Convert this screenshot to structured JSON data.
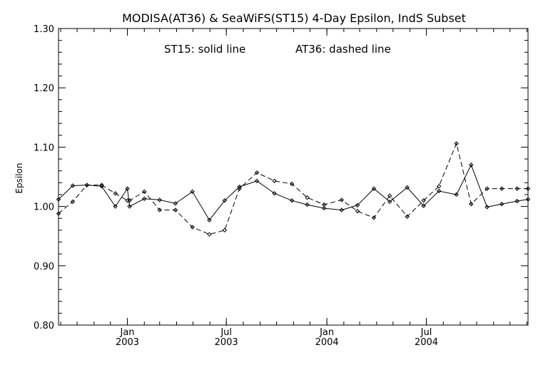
{
  "chart_data": {
    "type": "line",
    "title": "MODISA(AT36) & SeaWiFS(ST15) 4-Day Epsilon, IndS Subset",
    "annotation": {
      "solid": "ST15: solid line",
      "dashed": "AT36: dashed line"
    },
    "ylabel": "Epsilon",
    "xlabel": "",
    "ylim": [
      0.8,
      1.3
    ],
    "xlim": [
      "2002-08-28",
      "2005-01-03"
    ],
    "yticks": [
      "0.80",
      "0.90",
      "1.00",
      "1.10",
      "1.20",
      "1.30"
    ],
    "yticks_values": [
      0.8,
      0.9,
      1.0,
      1.1,
      1.2,
      1.3
    ],
    "xticks": [
      {
        "date": "2003-01-01",
        "month": "Jan",
        "year": "2003"
      },
      {
        "date": "2003-07-01",
        "month": "Jul",
        "year": "2003"
      },
      {
        "date": "2004-01-01",
        "month": "Jan",
        "year": "2004"
      },
      {
        "date": "2004-07-01",
        "month": "Jul",
        "year": "2004"
      }
    ],
    "grid": false,
    "series": [
      {
        "name": "ST15",
        "style": "solid",
        "color": "#000000",
        "x": [
          "2002-08-28",
          "2002-09-23",
          "2002-10-19",
          "2002-11-15",
          "2002-12-10",
          "2003-01-01",
          "2003-01-05",
          "2003-02-01",
          "2003-03-01",
          "2003-03-30",
          "2003-04-30",
          "2003-05-31",
          "2003-06-28",
          "2003-07-25",
          "2003-08-26",
          "2003-09-27",
          "2003-10-29",
          "2003-11-26",
          "2003-12-27",
          "2004-01-28",
          "2004-02-26",
          "2004-03-27",
          "2004-04-25",
          "2004-05-27",
          "2004-06-26",
          "2004-07-24",
          "2004-08-25",
          "2004-09-21",
          "2004-10-20",
          "2004-11-16",
          "2004-12-14",
          "2005-01-03"
        ],
        "values": [
          1.012,
          1.035,
          1.036,
          1.034,
          1.0,
          1.03,
          1.0,
          1.013,
          1.011,
          1.005,
          1.025,
          0.977,
          1.01,
          1.033,
          1.043,
          1.022,
          1.01,
          1.003,
          0.997,
          0.994,
          1.002,
          1.03,
          1.008,
          1.032,
          1.001,
          1.026,
          1.02,
          1.07,
          0.999,
          1.004,
          1.009,
          1.012
        ]
      },
      {
        "name": "AT36",
        "style": "dashed",
        "color": "#000000",
        "x": [
          "2002-08-28",
          "2002-09-23",
          "2002-10-19",
          "2002-11-15",
          "2002-12-10",
          "2003-01-01",
          "2003-01-05",
          "2003-02-01",
          "2003-03-01",
          "2003-03-30",
          "2003-04-30",
          "2003-05-31",
          "2003-06-28",
          "2003-07-25",
          "2003-08-26",
          "2003-09-27",
          "2003-10-29",
          "2003-11-26",
          "2003-12-27",
          "2004-01-28",
          "2004-02-26",
          "2004-03-27",
          "2004-04-25",
          "2004-05-27",
          "2004-06-26",
          "2004-07-24",
          "2004-08-25",
          "2004-09-21",
          "2004-10-20",
          "2004-11-16",
          "2004-12-14",
          "2005-01-03"
        ],
        "values": [
          0.988,
          1.008,
          1.036,
          1.036,
          1.022,
          1.01,
          1.01,
          1.025,
          0.994,
          0.994,
          0.965,
          0.953,
          0.96,
          1.03,
          1.057,
          1.043,
          1.038,
          1.015,
          1.003,
          1.011,
          0.992,
          0.981,
          1.018,
          0.983,
          1.01,
          1.034,
          1.106,
          1.004,
          1.03,
          1.03,
          1.03,
          1.03
        ]
      }
    ]
  }
}
